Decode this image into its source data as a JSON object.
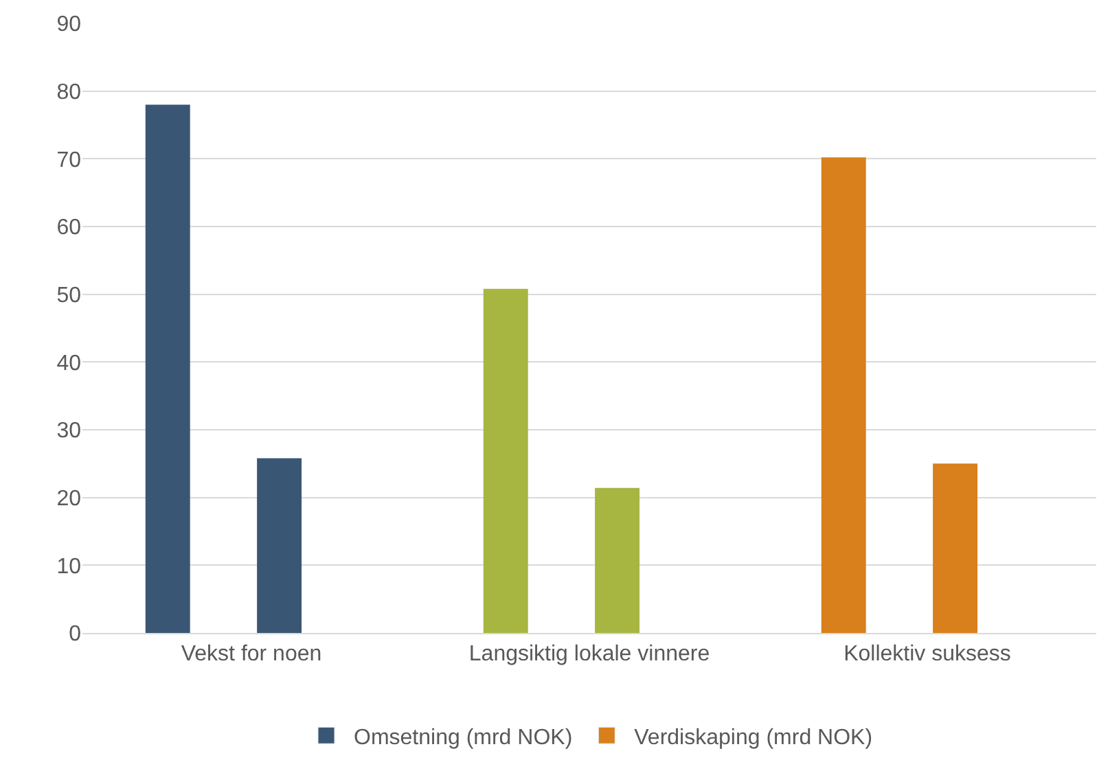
{
  "chart_data": {
    "type": "bar",
    "categories": [
      "Vekst for noen",
      "Langsiktig lokale vinnere",
      "Kollektiv suksess"
    ],
    "series": [
      {
        "name": "Omsetning (mrd NOK)",
        "color": "#3a5675",
        "colors": [
          "#3a5675",
          "#a7b541",
          "#d97f1b"
        ],
        "values": [
          78,
          50.8,
          70.2
        ]
      },
      {
        "name": "Verdiskaping (mrd NOK)",
        "color": "#d97f1b",
        "colors": [
          "#3a5675",
          "#a7b541",
          "#d97f1b"
        ],
        "values": [
          25.8,
          21.4,
          25
        ]
      }
    ],
    "ylim": [
      0,
      90
    ],
    "yticks": [
      0,
      10,
      20,
      30,
      40,
      50,
      60,
      70,
      80,
      90
    ],
    "grid": "y",
    "legend": "bottom"
  }
}
